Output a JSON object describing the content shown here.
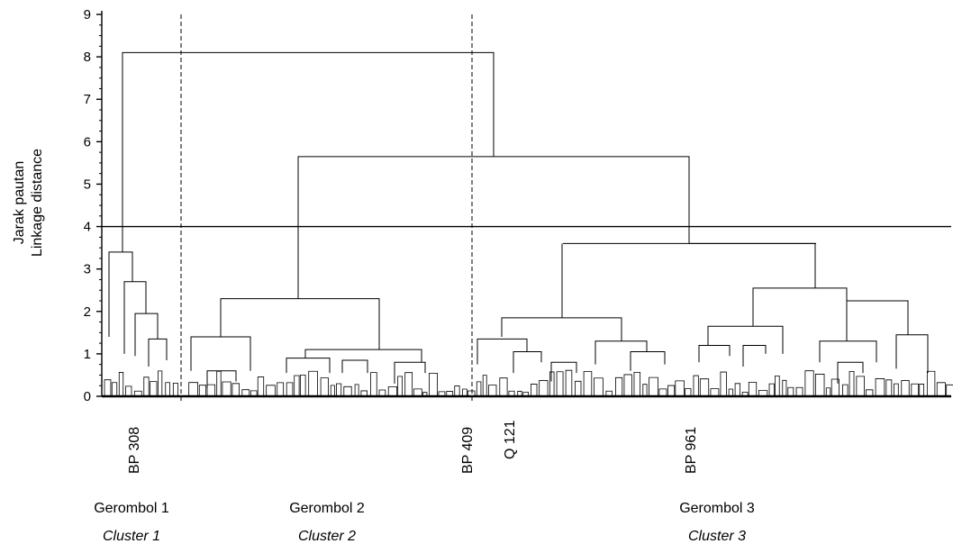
{
  "chart_data": {
    "type": "dendrogram",
    "ylabel_line1": "Jarak pautan",
    "ylabel_line2": "Linkage distance",
    "ylim": [
      0,
      9
    ],
    "yticks": [
      "0",
      "1",
      "2",
      "3",
      "4",
      "5",
      "6",
      "7",
      "8",
      "9"
    ],
    "cut_line": 4,
    "merges": [
      {
        "left": "Gerombol 1",
        "right": "Gerombol 2 + Gerombol 3",
        "height": 8.1
      },
      {
        "left": "Gerombol 2",
        "right": "Gerombol 3",
        "height": 5.65
      },
      {
        "cluster": "Gerombol 1",
        "height": 3.4
      },
      {
        "cluster": "Gerombol 2",
        "height": 2.3
      },
      {
        "cluster": "Gerombol 3",
        "height": 3.6
      }
    ],
    "leaf_labels": [
      "BP 308",
      "BP 409",
      "Q 121",
      "BP 961"
    ],
    "clusters": [
      {
        "name": "Gerombol 1",
        "name_en": "Cluster 1"
      },
      {
        "name": "Gerombol 2",
        "name_en": "Cluster 2"
      },
      {
        "name": "Gerombol 3",
        "name_en": "Cluster 3"
      }
    ]
  }
}
